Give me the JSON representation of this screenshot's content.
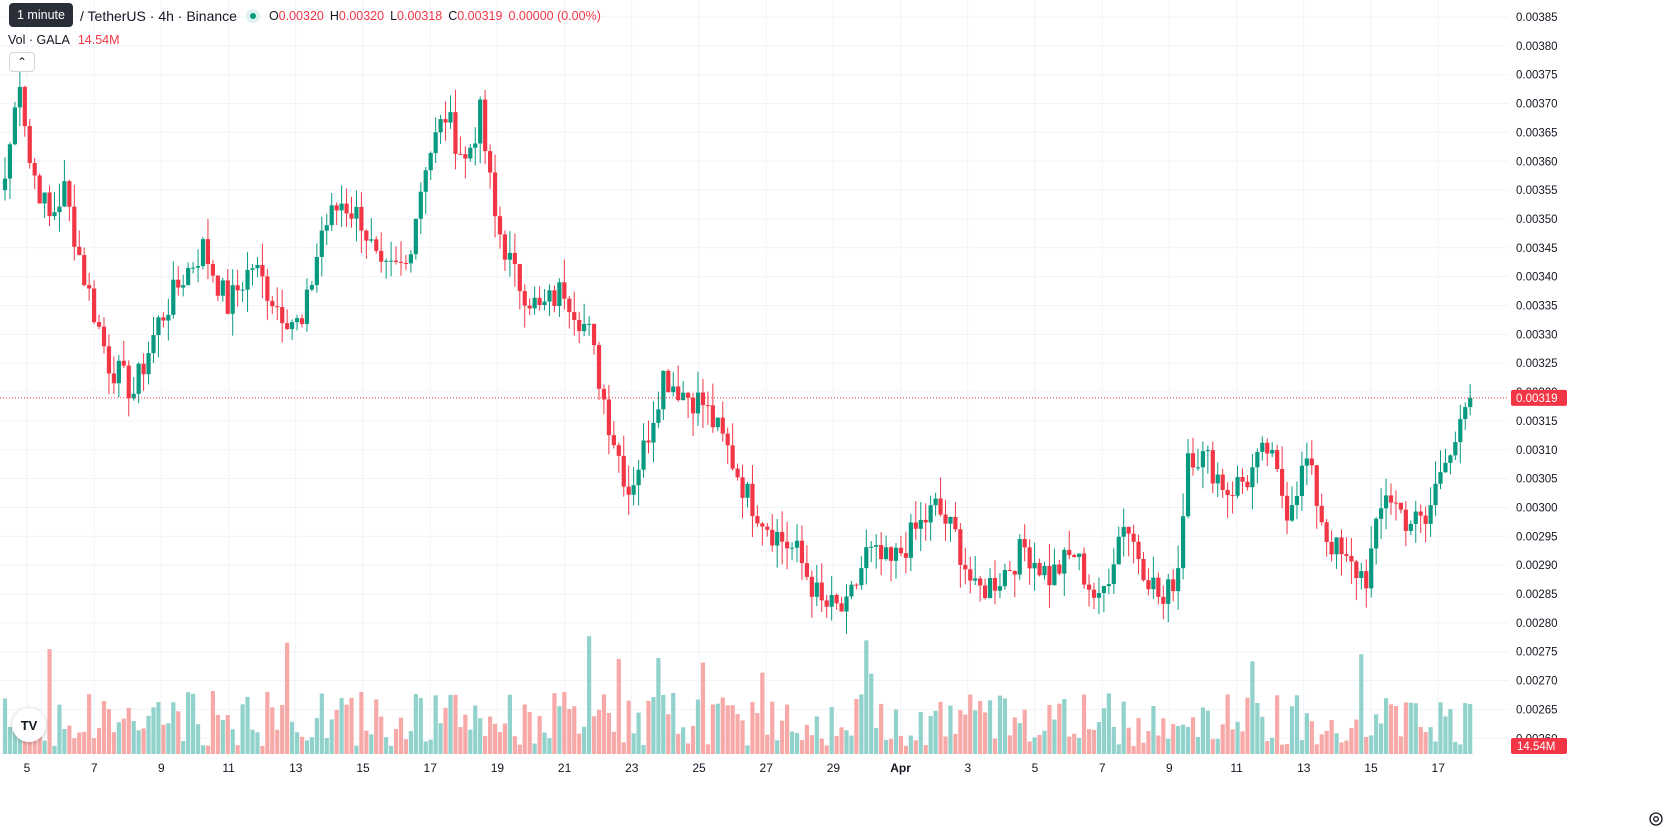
{
  "header": {
    "tooltip": "1 minute",
    "symbol": "/ TetherUS · 4h · Binance",
    "ohlc": [
      {
        "k": "O",
        "v": "0.00320"
      },
      {
        "k": "H",
        "v": "0.00320"
      },
      {
        "k": "L",
        "v": "0.00318"
      },
      {
        "k": "C",
        "v": "0.00319"
      }
    ],
    "change": "0.00000 (0.00%)",
    "volume_label": "Vol · GALA",
    "volume_value": "14.54M",
    "collapse_icon": "chevron-up-icon",
    "logo_text": "TV"
  },
  "colors": {
    "up": "#089981",
    "down": "#f23645",
    "up_vol": "#92d2cc",
    "down_vol": "#f7a9a7",
    "grid": "#f0f3fa"
  },
  "chart_data": {
    "type": "candlestick",
    "price_ticks": [
      "0.00385",
      "0.00380",
      "0.00375",
      "0.00370",
      "0.00365",
      "0.00360",
      "0.00355",
      "0.00350",
      "0.00345",
      "0.00340",
      "0.00335",
      "0.00330",
      "0.00325",
      "0.00320",
      "0.00315",
      "0.00310",
      "0.00305",
      "0.00300",
      "0.00295",
      "0.00290",
      "0.00285",
      "0.00280",
      "0.00275",
      "0.00270",
      "0.00265",
      "0.00260"
    ],
    "price_range": [
      0.00258,
      0.00388
    ],
    "last_price": "0.00319",
    "last_volume": "14.54M",
    "date_ticks": [
      "5",
      "7",
      "9",
      "11",
      "13",
      "15",
      "17",
      "19",
      "21",
      "23",
      "25",
      "27",
      "29",
      "Apr",
      "3",
      "5",
      "7",
      "9",
      "11",
      "13",
      "15",
      "17"
    ],
    "close_anchors": [
      {
        "i": 0,
        "c": 0.00357
      },
      {
        "i": 3,
        "c": 0.00375
      },
      {
        "i": 5,
        "c": 0.0036
      },
      {
        "i": 9,
        "c": 0.0035
      },
      {
        "i": 12,
        "c": 0.00355
      },
      {
        "i": 16,
        "c": 0.0034
      },
      {
        "i": 21,
        "c": 0.00325
      },
      {
        "i": 26,
        "c": 0.0032
      },
      {
        "i": 31,
        "c": 0.00332
      },
      {
        "i": 36,
        "c": 0.0034
      },
      {
        "i": 40,
        "c": 0.00345
      },
      {
        "i": 45,
        "c": 0.00335
      },
      {
        "i": 50,
        "c": 0.00342
      },
      {
        "i": 55,
        "c": 0.00335
      },
      {
        "i": 60,
        "c": 0.00331
      },
      {
        "i": 64,
        "c": 0.00348
      },
      {
        "i": 68,
        "c": 0.00353
      },
      {
        "i": 72,
        "c": 0.0035
      },
      {
        "i": 76,
        "c": 0.0034
      },
      {
        "i": 81,
        "c": 0.00342
      },
      {
        "i": 85,
        "c": 0.0036
      },
      {
        "i": 89,
        "c": 0.00368
      },
      {
        "i": 93,
        "c": 0.0036
      },
      {
        "i": 96,
        "c": 0.00368
      },
      {
        "i": 99,
        "c": 0.0035
      },
      {
        "i": 103,
        "c": 0.0034
      },
      {
        "i": 108,
        "c": 0.00334
      },
      {
        "i": 113,
        "c": 0.00338
      },
      {
        "i": 118,
        "c": 0.0033
      },
      {
        "i": 122,
        "c": 0.00315
      },
      {
        "i": 126,
        "c": 0.00303
      },
      {
        "i": 129,
        "c": 0.0031
      },
      {
        "i": 133,
        "c": 0.00323
      },
      {
        "i": 137,
        "c": 0.0032
      },
      {
        "i": 141,
        "c": 0.00318
      },
      {
        "i": 146,
        "c": 0.0031
      },
      {
        "i": 150,
        "c": 0.00302
      },
      {
        "i": 155,
        "c": 0.00296
      },
      {
        "i": 160,
        "c": 0.00292
      },
      {
        "i": 165,
        "c": 0.00283
      },
      {
        "i": 170,
        "c": 0.00282
      },
      {
        "i": 174,
        "c": 0.00292
      },
      {
        "i": 179,
        "c": 0.0029
      },
      {
        "i": 184,
        "c": 0.00296
      },
      {
        "i": 188,
        "c": 0.003
      },
      {
        "i": 192,
        "c": 0.00295
      },
      {
        "i": 196,
        "c": 0.00285
      },
      {
        "i": 201,
        "c": 0.00288
      },
      {
        "i": 206,
        "c": 0.00293
      },
      {
        "i": 211,
        "c": 0.00288
      },
      {
        "i": 216,
        "c": 0.00292
      },
      {
        "i": 221,
        "c": 0.00283
      },
      {
        "i": 226,
        "c": 0.00298
      },
      {
        "i": 230,
        "c": 0.0029
      },
      {
        "i": 234,
        "c": 0.00283
      },
      {
        "i": 237,
        "c": 0.0029
      },
      {
        "i": 239,
        "c": 0.0031
      },
      {
        "i": 243,
        "c": 0.00308
      },
      {
        "i": 247,
        "c": 0.00303
      },
      {
        "i": 251,
        "c": 0.00305
      },
      {
        "i": 255,
        "c": 0.0031
      },
      {
        "i": 259,
        "c": 0.003
      },
      {
        "i": 263,
        "c": 0.00308
      },
      {
        "i": 267,
        "c": 0.00295
      },
      {
        "i": 271,
        "c": 0.0029
      },
      {
        "i": 275,
        "c": 0.00288
      },
      {
        "i": 279,
        "c": 0.00303
      },
      {
        "i": 283,
        "c": 0.00298
      },
      {
        "i": 287,
        "c": 0.00297
      },
      {
        "i": 291,
        "c": 0.0031
      },
      {
        "i": 294,
        "c": 0.00313
      },
      {
        "i": 296,
        "c": 0.00319
      }
    ]
  }
}
